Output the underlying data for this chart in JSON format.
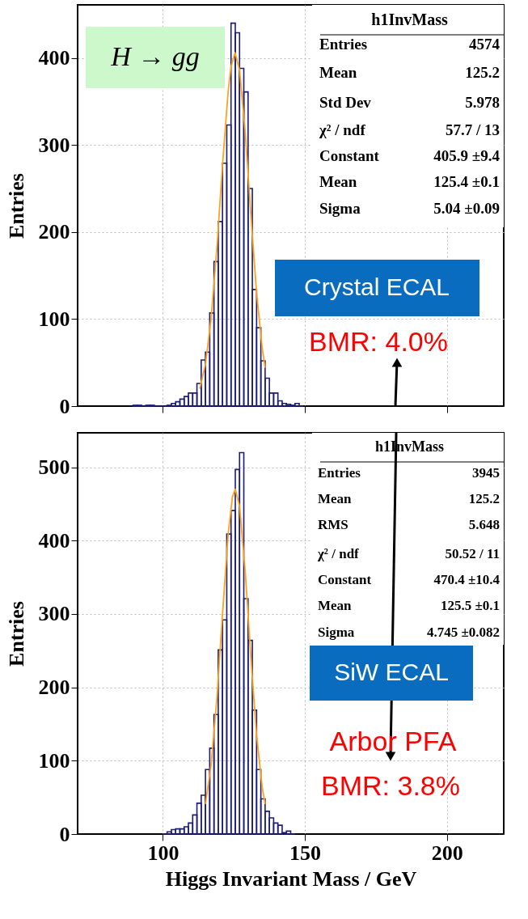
{
  "chart_data": [
    {
      "type": "histogram",
      "ylabel": "Entries",
      "xlim": [
        70,
        220
      ],
      "xticks": [
        100,
        150,
        200
      ],
      "ylim": [
        0,
        461
      ],
      "yticks": [
        0,
        100,
        200,
        300,
        400
      ],
      "grid": true,
      "tick_labels": "y",
      "series": [
        {
          "type": "histogram",
          "color": "#1c1c7a",
          "bins": [
            89.5,
            91,
            92.5,
            94,
            95.5,
            97,
            98.5,
            100,
            101.5,
            103,
            104.5,
            106,
            107.5,
            109,
            110.5,
            112,
            113.5,
            115,
            116.5,
            118,
            119.5,
            121,
            122.5,
            124,
            125.5,
            127,
            128.5,
            130,
            131.5,
            133,
            134.5,
            136,
            137.5,
            139,
            140.5,
            142,
            143.5,
            145,
            146.5,
            148,
            149.5
          ],
          "values": [
            1,
            1,
            0,
            1,
            1,
            0,
            0,
            0,
            1,
            3,
            5,
            8,
            11,
            15,
            15,
            26,
            53,
            62,
            107,
            166,
            212,
            279,
            323,
            440,
            429,
            388,
            361,
            250,
            134,
            90,
            52,
            32,
            15,
            15,
            6,
            3,
            2,
            1,
            3,
            0
          ]
        },
        {
          "type": "line",
          "color": "#ffa31a",
          "x": [
            113,
            115,
            117,
            119,
            121,
            123,
            124,
            125.4,
            127,
            129,
            131,
            133,
            135,
            136
          ],
          "values": [
            20,
            48,
            101,
            181,
            277,
            362,
            390,
            406,
            386,
            315,
            219,
            130,
            66,
            44
          ]
        }
      ],
      "annotations": [
        "h1InvMass",
        "Entries",
        "4574",
        "Mean",
        "125.2",
        "Std Dev",
        "5.978",
        "χ² / ndf",
        "57.7 / 13",
        "Constant",
        "405.9 ±9.4",
        "Mean",
        "125.4 ±0.1",
        "Sigma",
        "5.04 ±0.09",
        "H → gg",
        "Crystal ECAL",
        "BMR: 4.0%"
      ]
    },
    {
      "type": "histogram",
      "xlabel": "Higgs Invariant Mass / GeV",
      "ylabel": "Entries",
      "xlim": [
        70,
        220
      ],
      "xticks": [
        100,
        150,
        200
      ],
      "ylim": [
        0,
        547
      ],
      "yticks": [
        0,
        100,
        200,
        300,
        400,
        500
      ],
      "grid": true,
      "series": [
        {
          "type": "histogram",
          "color": "#1c1c7a",
          "bins": [
            100,
            101.5,
            103,
            104.5,
            106,
            107.5,
            109,
            110.5,
            112,
            113.5,
            115,
            116.5,
            118,
            119.5,
            121,
            122.5,
            124,
            125.5,
            127,
            128.5,
            130,
            131.5,
            133,
            134.5,
            136,
            137.5,
            139,
            140.5,
            142,
            143.5,
            145,
            146.5
          ],
          "values": [
            0,
            3,
            6,
            7,
            7,
            10,
            15,
            26,
            42,
            53,
            88,
            117,
            163,
            251,
            292,
            409,
            441,
            497,
            520,
            321,
            264,
            169,
            88,
            48,
            31,
            22,
            15,
            12,
            2,
            4,
            0
          ]
        },
        {
          "type": "line",
          "color": "#ffa31a",
          "x": [
            115,
            117,
            119,
            121,
            123,
            124.5,
            125.5,
            127,
            129,
            131,
            133,
            135,
            136
          ],
          "values": [
            41,
            95,
            184,
            300,
            409,
            460,
            470,
            447,
            358,
            240,
            135,
            63,
            41
          ]
        }
      ],
      "annotations": [
        "h1InvMass",
        "Entries",
        "3945",
        "Mean",
        "125.2",
        "RMS",
        "5.648",
        "χ² / ndf",
        "50.52 / 11",
        "Constant",
        "470.4 ±10.4",
        "Mean",
        "125.5 ±0.1",
        "Sigma",
        "4.745 ±0.082",
        "SiW ECAL",
        "Arbor PFA",
        "BMR: 3.8%"
      ]
    }
  ]
}
